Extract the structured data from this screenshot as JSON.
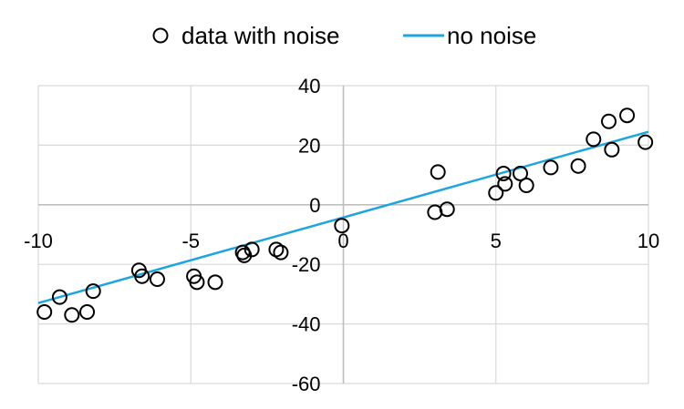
{
  "chart_data": {
    "type": "scatter",
    "title": "",
    "xlabel": "",
    "ylabel": "",
    "xlim": [
      -10,
      10
    ],
    "ylim": [
      -60,
      40
    ],
    "x_ticks": [
      -10,
      -5,
      0,
      5,
      10
    ],
    "y_ticks": [
      40,
      20,
      0,
      -20,
      -40,
      -60
    ],
    "x_tick_labels": [
      "-10",
      "-5",
      "0",
      "5",
      "10"
    ],
    "y_tick_labels": [
      "40",
      "20",
      "0",
      "-20",
      "-40",
      "-60"
    ],
    "grid": "vertical and horizontal major gridlines",
    "legend_position": "top",
    "series": [
      {
        "name": "data with noise",
        "kind": "scatter",
        "marker": "open-circle",
        "color": "#000000",
        "x": [
          -9.8,
          -9.3,
          -8.9,
          -8.4,
          -8.2,
          -6.7,
          -6.6,
          -6.1,
          -4.9,
          -4.8,
          -4.2,
          -3.3,
          -3.25,
          -3.0,
          -2.2,
          -2.05,
          -0.05,
          3.0,
          3.1,
          3.4,
          5.0,
          5.25,
          5.3,
          5.8,
          6.0,
          6.8,
          7.7,
          8.2,
          8.7,
          8.8,
          9.3,
          9.9
        ],
        "y": [
          -36,
          -31,
          -37,
          -36,
          -29,
          -22,
          -24,
          -25,
          -24,
          -26,
          -26,
          -16,
          -17,
          -15,
          -15,
          -16,
          -7,
          -2.5,
          11,
          -1.5,
          4,
          10.5,
          7,
          10.5,
          6.5,
          12.5,
          13,
          22,
          28,
          18.5,
          30,
          21
        ]
      },
      {
        "name": "no noise",
        "kind": "line",
        "color": "#1fa5dd",
        "x": [
          -10,
          10
        ],
        "y": [
          -33,
          24.5
        ]
      }
    ]
  }
}
